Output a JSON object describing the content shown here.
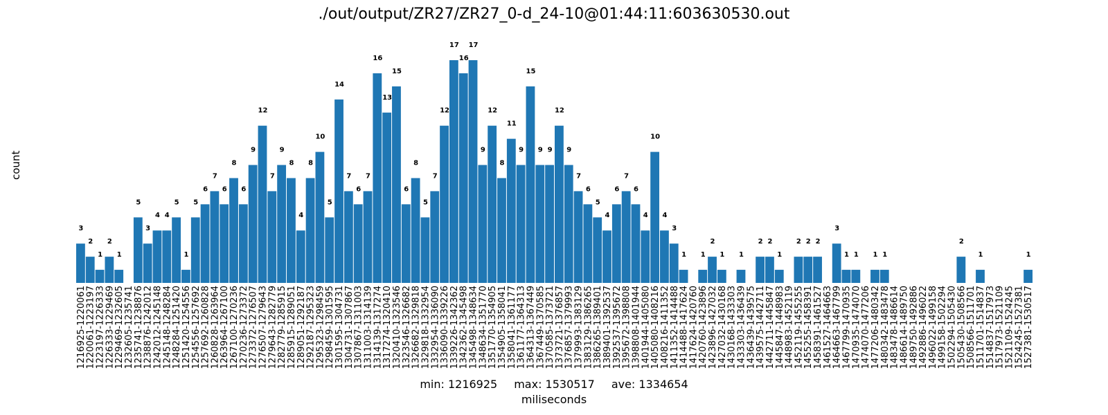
{
  "chart_data": {
    "type": "bar",
    "title": "./out/output/ZR27/ZR27_0-d_24-10@01:44:11:603630530.out",
    "xlabel": "miliseconds",
    "ylabel": "count",
    "stats": {
      "min": "min: 1216925",
      "max": "max: 1530517",
      "ave": "ave: 1334654"
    },
    "bar_color": "#1f77b4",
    "grid": false,
    "categories": [
      "1216925-1220061",
      "1220061-1223197",
      "1223197-1226333",
      "1226333-1229469",
      "1229469-1232605",
      "1232605-1235741",
      "1235741-1238876",
      "1238876-1242012",
      "1242012-1245148",
      "1245148-1248284",
      "1248284-1251420",
      "1251420-1254556",
      "1254556-1257692",
      "1257692-1260828",
      "1260828-1263964",
      "1263964-1267100",
      "1267100-1270236",
      "1270236-1273372",
      "1273372-1276507",
      "1276507-1279643",
      "1279643-1282779",
      "1282779-1285915",
      "1285915-1289051",
      "1289051-1292187",
      "1292187-1295323",
      "1295323-1298459",
      "1298459-1301595",
      "1301595-1304731",
      "1304731-1307867",
      "1307867-1311003",
      "1311003-1314139",
      "1314139-1317274",
      "1317274-1320410",
      "1320410-1323546",
      "1323546-1326682",
      "1326682-1329818",
      "1329818-1332954",
      "1332954-1336090",
      "1336090-1339226",
      "1339226-1342362",
      "1342362-1345498",
      "1345498-1348634",
      "1348634-1351770",
      "1351770-1354905",
      "1354905-1358041",
      "1358041-1361177",
      "1361177-1364313",
      "1364313-1367449",
      "1367449-1370585",
      "1370585-1373721",
      "1373721-1376857",
      "1376857-1379993",
      "1379993-1383129",
      "1383129-1386265",
      "1386265-1389401",
      "1389401-1392537",
      "1392537-1395672",
      "1395672-1398808",
      "1398808-1401944",
      "1401944-1405080",
      "1405080-1408216",
      "1408216-1411352",
      "1411352-1414488",
      "1414488-1417624",
      "1417624-1420760",
      "1420760-1423896",
      "1423896-1427032",
      "1427032-1430168",
      "1430168-1433303",
      "1433303-1436439",
      "1436439-1439575",
      "1439575-1442711",
      "1442711-1445847",
      "1445847-1448983",
      "1448983-1452119",
      "1452119-1455255",
      "1455255-1458391",
      "1458391-1461527",
      "1461527-1464663",
      "1464663-1467799",
      "1467799-1470935",
      "1470935-1474070",
      "1474070-1477206",
      "1477206-1480342",
      "1480342-1483478",
      "1483478-1486614",
      "1486614-1489750",
      "1489750-1492886",
      "1492886-1496022",
      "1496022-1499158",
      "1499158-1502294",
      "1502294-1505430",
      "1505430-1508566",
      "1508566-1511701",
      "1511701-1514837",
      "1514837-1517973",
      "1517973-1521109",
      "1521109-1524245",
      "1524245-1527381",
      "1527381-1530517"
    ],
    "values": [
      3,
      2,
      1,
      2,
      1,
      0,
      5,
      3,
      4,
      4,
      5,
      1,
      5,
      6,
      7,
      6,
      8,
      6,
      9,
      12,
      7,
      9,
      8,
      4,
      8,
      10,
      5,
      14,
      7,
      6,
      7,
      16,
      13,
      15,
      6,
      8,
      5,
      7,
      12,
      17,
      16,
      17,
      9,
      12,
      8,
      11,
      9,
      15,
      9,
      9,
      12,
      9,
      7,
      6,
      5,
      4,
      6,
      7,
      6,
      4,
      10,
      4,
      3,
      1,
      0,
      1,
      2,
      1,
      0,
      1,
      0,
      2,
      2,
      1,
      0,
      2,
      2,
      2,
      0,
      3,
      1,
      1,
      0,
      1,
      1,
      0,
      0,
      0,
      0,
      0,
      0,
      0,
      2,
      0,
      1,
      0,
      0,
      0,
      0,
      1
    ],
    "ylim": [
      0,
      17
    ]
  }
}
